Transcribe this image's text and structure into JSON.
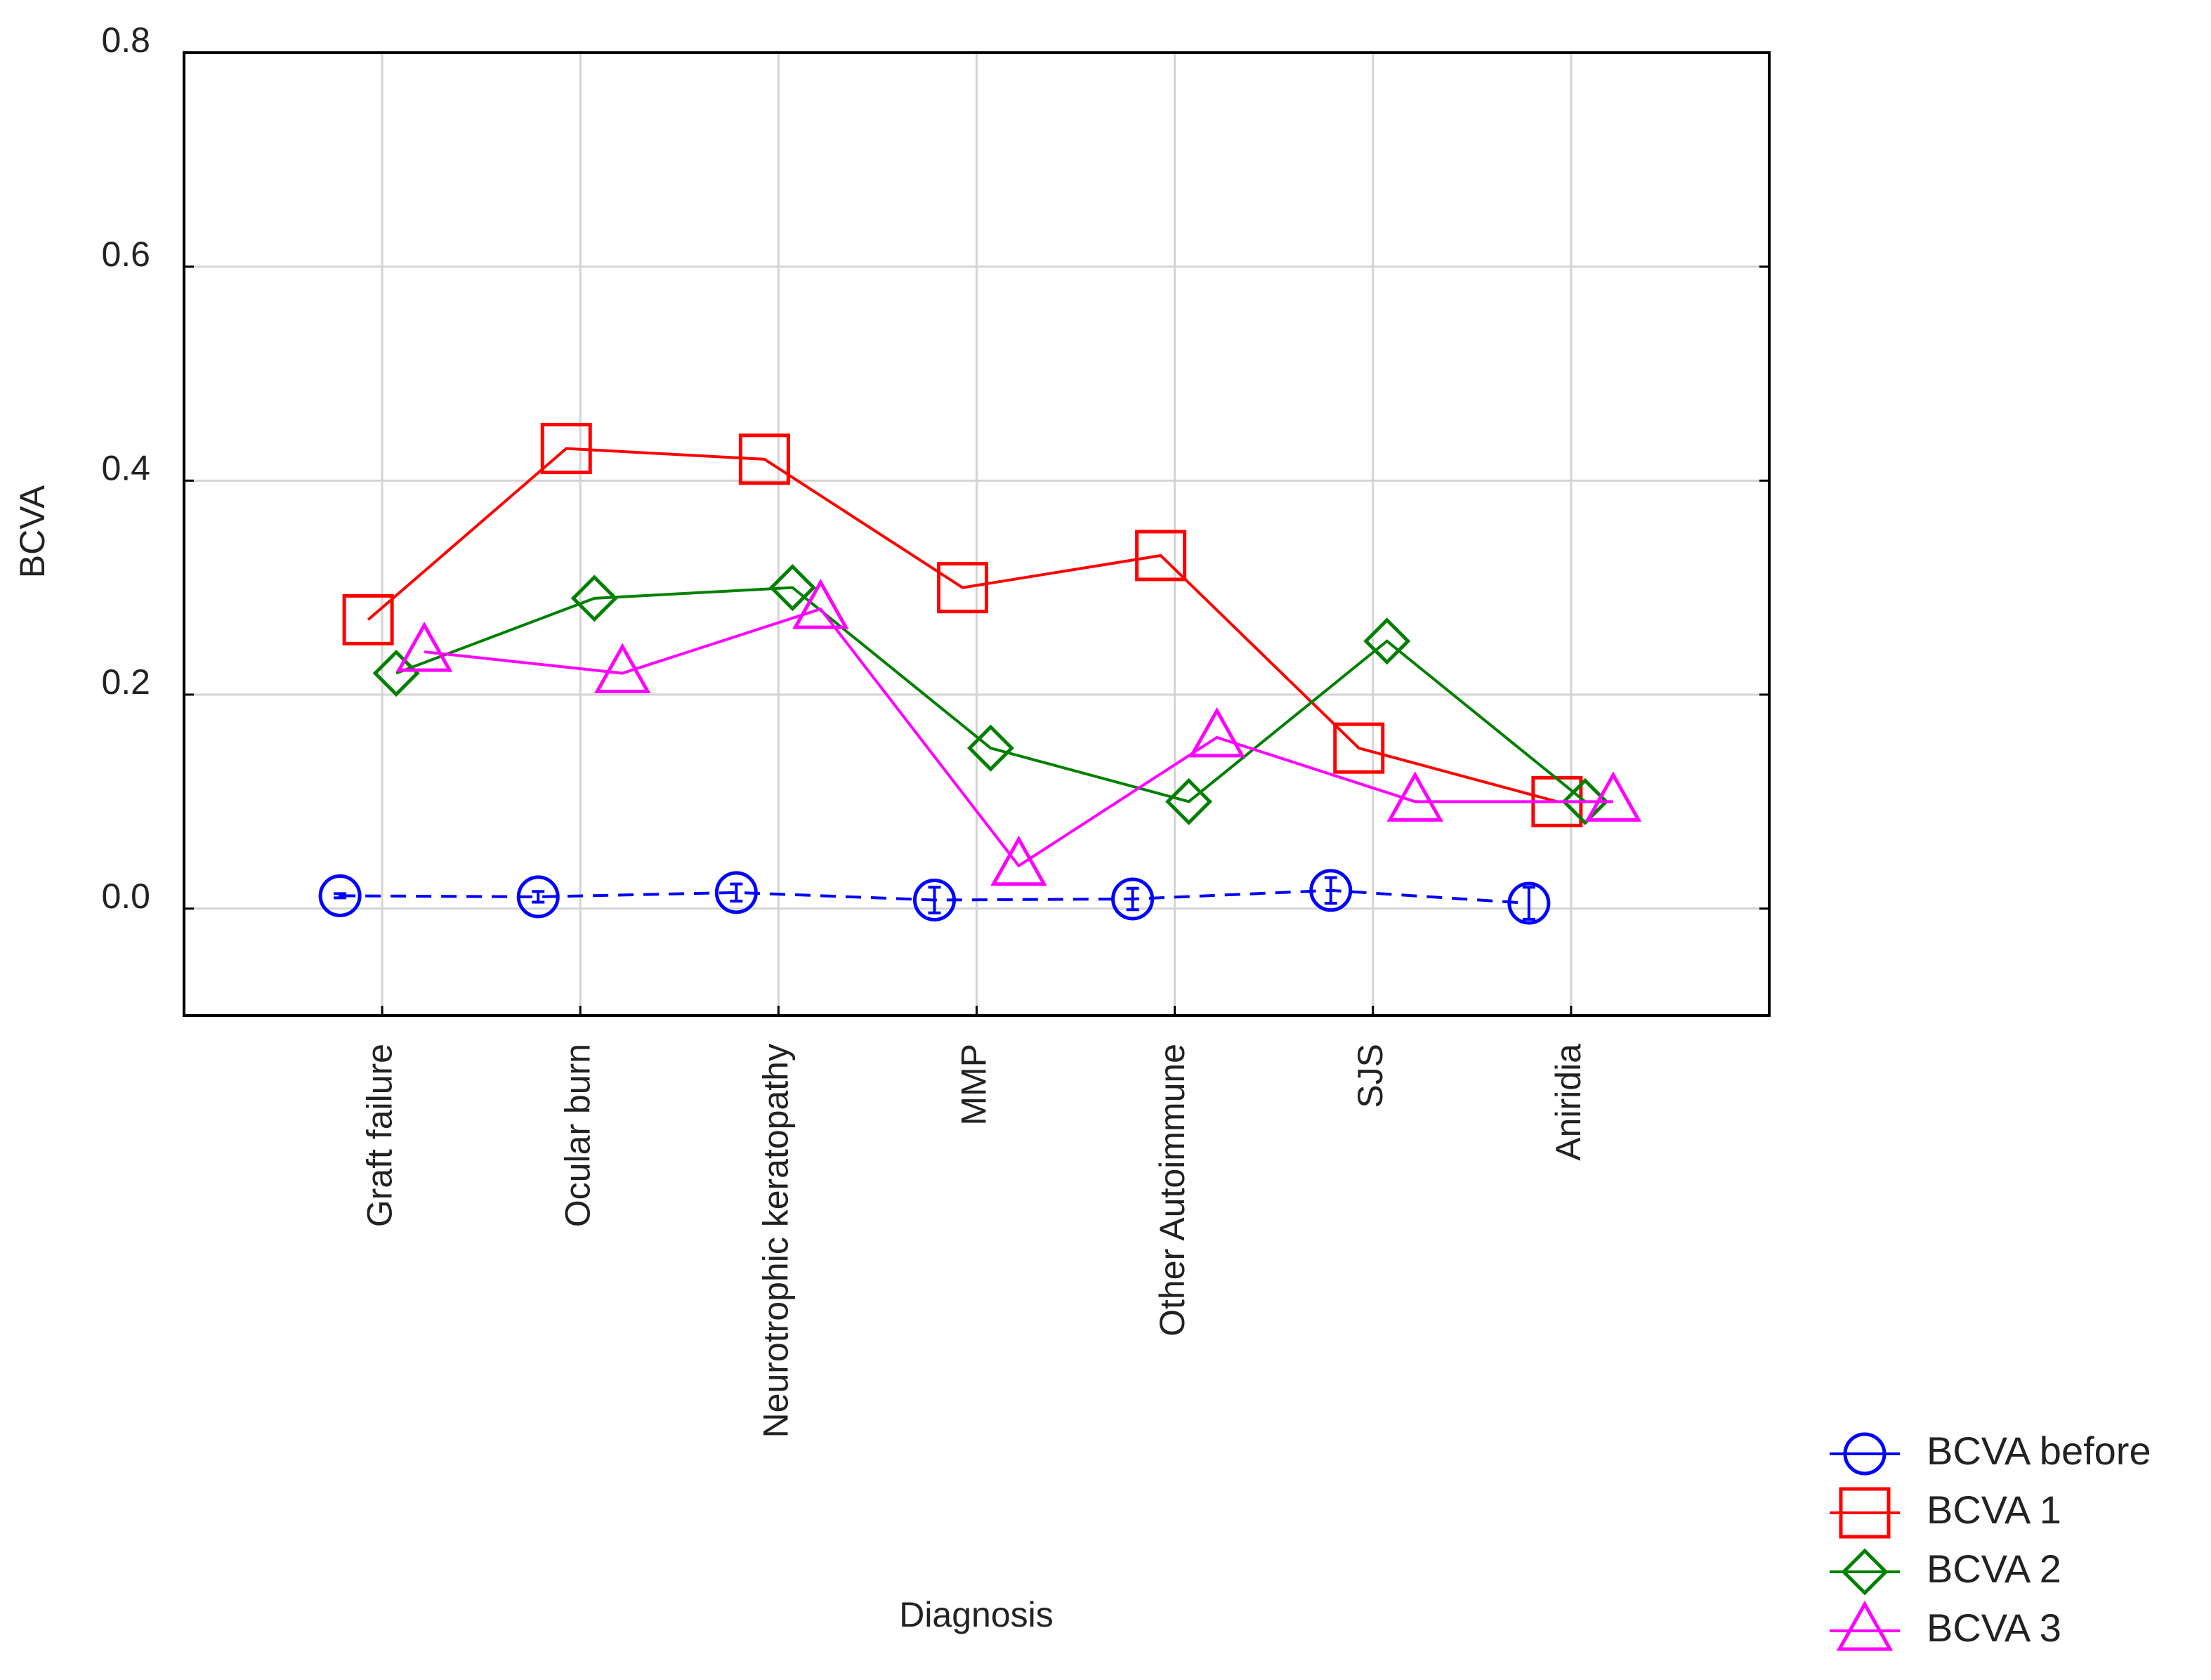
{
  "chart_data": {
    "type": "line",
    "x_label": "Diagnosis",
    "y_label": "BCVA",
    "categories": [
      "Graft failure",
      "Ocular burn",
      "Neurotrophic keratopathy",
      "MMP",
      "Other Autoimmune",
      "SJS",
      "Aniridia"
    ],
    "series": [
      {
        "name": "BCVA before",
        "color": "#0000ff",
        "dashed": true,
        "values": [
          0.012,
          0.011,
          0.015,
          0.008,
          0.009,
          0.017,
          0.005
        ],
        "errors": [
          0.002,
          0.005,
          0.008,
          0.012,
          0.01,
          0.012,
          0.015
        ]
      },
      {
        "name": "BCVA 1",
        "color": "#ff0000",
        "values": [
          0.27,
          0.43,
          0.42,
          0.3,
          0.33,
          0.15,
          0.1
        ]
      },
      {
        "name": "BCVA 2",
        "color": "#008000",
        "values": [
          0.22,
          0.29,
          0.3,
          0.15,
          0.1,
          0.25,
          0.1
        ]
      },
      {
        "name": "BCVA 3",
        "color": "#ff00ff",
        "values": [
          0.24,
          0.22,
          0.28,
          0.04,
          0.16,
          0.1,
          0.1
        ]
      }
    ],
    "ylim": [
      -0.1,
      0.8
    ],
    "yticks": [
      {
        "value": 0,
        "label": "0.0"
      },
      0.2,
      0.4,
      0.6,
      0.8
    ],
    "grid": true
  }
}
